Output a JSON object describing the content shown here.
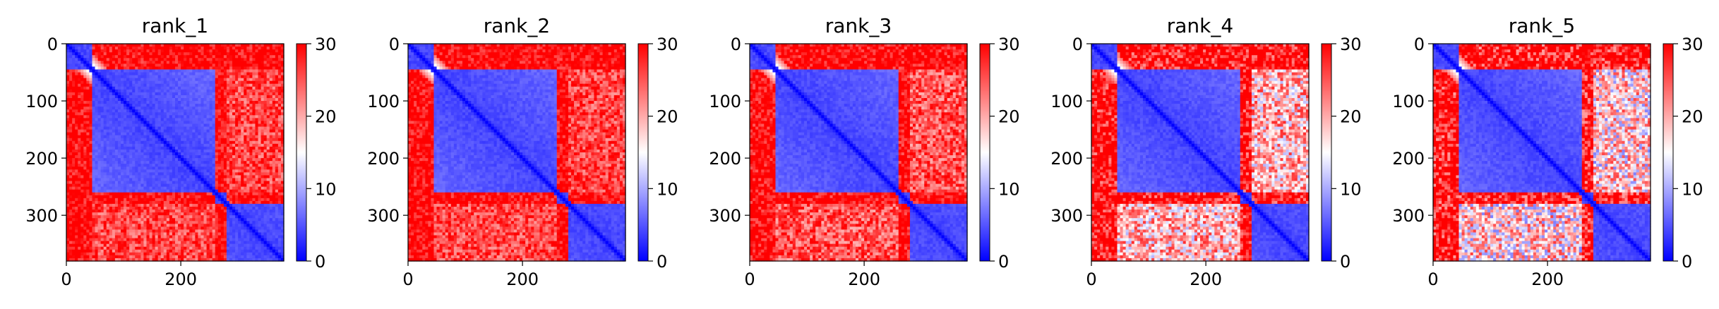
{
  "chart_data": [
    {
      "type": "heatmap",
      "title": "rank_1",
      "xticks": [
        0,
        200
      ],
      "yticks": [
        0,
        100,
        200,
        300
      ],
      "xlim": [
        0,
        380
      ],
      "ylim": [
        380,
        0
      ],
      "colorbar": {
        "ticks": [
          0,
          10,
          20,
          30
        ],
        "vmin": 0,
        "vmax": 30
      },
      "colormap": [
        "#0000ff",
        "#ffffff",
        "#ff0000"
      ],
      "domains": [
        [
          0,
          45
        ],
        [
          45,
          262
        ],
        [
          262,
          280
        ],
        [
          280,
          380
        ]
      ],
      "cross_level": 26,
      "inner_level": 3
    },
    {
      "type": "heatmap",
      "title": "rank_2",
      "xticks": [
        0,
        200
      ],
      "yticks": [
        0,
        100,
        200,
        300
      ],
      "xlim": [
        0,
        380
      ],
      "ylim": [
        380,
        0
      ],
      "colorbar": {
        "ticks": [
          0,
          10,
          20,
          30
        ],
        "vmin": 0,
        "vmax": 30
      },
      "colormap": [
        "#0000ff",
        "#ffffff",
        "#ff0000"
      ],
      "domains": [
        [
          0,
          45
        ],
        [
          45,
          262
        ],
        [
          262,
          280
        ],
        [
          280,
          380
        ]
      ],
      "cross_level": 26,
      "inner_level": 3
    },
    {
      "type": "heatmap",
      "title": "rank_3",
      "xticks": [
        0,
        200
      ],
      "yticks": [
        0,
        100,
        200,
        300
      ],
      "xlim": [
        0,
        380
      ],
      "ylim": [
        380,
        0
      ],
      "colorbar": {
        "ticks": [
          0,
          10,
          20,
          30
        ],
        "vmin": 0,
        "vmax": 30
      },
      "colormap": [
        "#0000ff",
        "#ffffff",
        "#ff0000"
      ],
      "domains": [
        [
          0,
          45
        ],
        [
          45,
          262
        ],
        [
          262,
          280
        ],
        [
          280,
          380
        ]
      ],
      "cross_level": 25,
      "inner_level": 3
    },
    {
      "type": "heatmap",
      "title": "rank_4",
      "xticks": [
        0,
        200
      ],
      "yticks": [
        0,
        100,
        200,
        300
      ],
      "xlim": [
        0,
        380
      ],
      "ylim": [
        380,
        0
      ],
      "colorbar": {
        "ticks": [
          0,
          10,
          20,
          30
        ],
        "vmin": 0,
        "vmax": 30
      },
      "colormap": [
        "#0000ff",
        "#ffffff",
        "#ff0000"
      ],
      "domains": [
        [
          0,
          45
        ],
        [
          45,
          262
        ],
        [
          262,
          280
        ],
        [
          280,
          380
        ]
      ],
      "cross_level": 19,
      "inner_level": 3
    },
    {
      "type": "heatmap",
      "title": "rank_5",
      "xticks": [
        0,
        200
      ],
      "yticks": [
        0,
        100,
        200,
        300
      ],
      "xlim": [
        0,
        380
      ],
      "ylim": [
        380,
        0
      ],
      "colorbar": {
        "ticks": [
          0,
          10,
          20,
          30
        ],
        "vmin": 0,
        "vmax": 30
      },
      "colormap": [
        "#0000ff",
        "#ffffff",
        "#ff0000"
      ],
      "domains": [
        [
          0,
          45
        ],
        [
          45,
          262
        ],
        [
          262,
          280
        ],
        [
          280,
          380
        ]
      ],
      "cross_level": 17,
      "inner_level": 3
    }
  ]
}
